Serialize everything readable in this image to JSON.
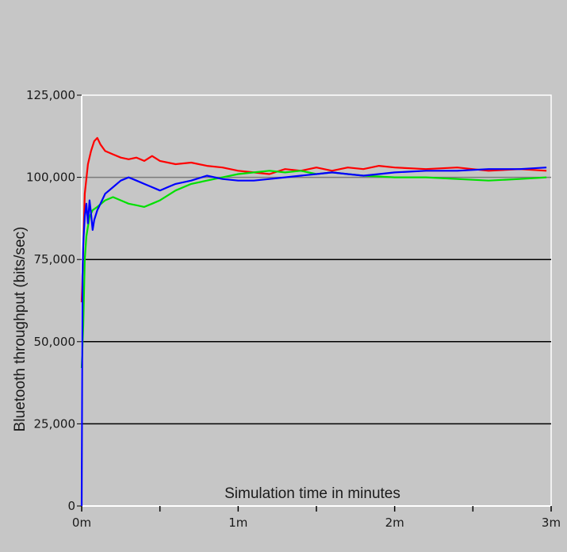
{
  "chart_data": {
    "type": "line",
    "title": "",
    "xlabel": "Simulation time in minutes",
    "ylabel": "Bluetooth throughput (bits/sec)",
    "xlim": [
      0,
      3
    ],
    "ylim": [
      0,
      125000
    ],
    "x_ticks": [
      {
        "value": 0,
        "label": "0m"
      },
      {
        "value": 1,
        "label": "1m"
      },
      {
        "value": 2,
        "label": "2m"
      },
      {
        "value": 3,
        "label": "3m"
      }
    ],
    "y_ticks": [
      {
        "value": 0,
        "label": "0"
      },
      {
        "value": 25000,
        "label": "25,000"
      },
      {
        "value": 50000,
        "label": "50,000"
      },
      {
        "value": 75000,
        "label": "75,000"
      },
      {
        "value": 100000,
        "label": "100,000"
      },
      {
        "value": 125000,
        "label": "125,000"
      }
    ],
    "gridlines_y": [
      25000,
      50000,
      75000,
      100000
    ],
    "grid": true,
    "series": [
      {
        "color": "#ff0000",
        "x": [
          0,
          0.02,
          0.04,
          0.06,
          0.08,
          0.1,
          0.12,
          0.15,
          0.2,
          0.25,
          0.3,
          0.35,
          0.4,
          0.45,
          0.5,
          0.6,
          0.7,
          0.8,
          0.9,
          1.0,
          1.1,
          1.2,
          1.3,
          1.4,
          1.5,
          1.6,
          1.7,
          1.8,
          1.9,
          2.0,
          2.2,
          2.4,
          2.6,
          2.8,
          2.97
        ],
        "y": [
          62000,
          95000,
          104000,
          108000,
          111000,
          112000,
          110000,
          108000,
          107000,
          106000,
          105500,
          106000,
          105000,
          106500,
          105000,
          104000,
          104500,
          103500,
          103000,
          102000,
          101500,
          101000,
          102500,
          102000,
          103000,
          102000,
          103000,
          102500,
          103500,
          103000,
          102500,
          103000,
          102000,
          102500,
          102000
        ]
      },
      {
        "color": "#00e000",
        "x": [
          0,
          0.01,
          0.02,
          0.03,
          0.05,
          0.07,
          0.1,
          0.15,
          0.2,
          0.25,
          0.3,
          0.35,
          0.4,
          0.45,
          0.5,
          0.55,
          0.6,
          0.7,
          0.8,
          0.9,
          1.0,
          1.1,
          1.2,
          1.3,
          1.4,
          1.5,
          1.6,
          1.7,
          1.8,
          2.0,
          2.2,
          2.4,
          2.6,
          2.8,
          2.97
        ],
        "y": [
          42000,
          55000,
          75000,
          82000,
          88000,
          90000,
          91000,
          93000,
          94000,
          93000,
          92000,
          91500,
          91000,
          92000,
          93000,
          94500,
          96000,
          98000,
          99000,
          100000,
          101000,
          101500,
          102000,
          101500,
          102000,
          101000,
          101500,
          101000,
          100500,
          100000,
          100000,
          99500,
          99000,
          99500,
          100000
        ]
      },
      {
        "color": "#0000ff",
        "x": [
          0,
          0.005,
          0.01,
          0.02,
          0.03,
          0.04,
          0.05,
          0.06,
          0.07,
          0.08,
          0.1,
          0.12,
          0.15,
          0.2,
          0.25,
          0.3,
          0.35,
          0.4,
          0.45,
          0.5,
          0.55,
          0.6,
          0.7,
          0.8,
          0.9,
          1.0,
          1.1,
          1.2,
          1.3,
          1.4,
          1.5,
          1.6,
          1.7,
          1.8,
          1.9,
          2.0,
          2.2,
          2.4,
          2.6,
          2.8,
          2.97
        ],
        "y": [
          0,
          70000,
          80000,
          88000,
          92000,
          86000,
          93000,
          89000,
          84000,
          87000,
          90000,
          92000,
          95000,
          97000,
          99000,
          100000,
          99000,
          98000,
          97000,
          96000,
          97000,
          98000,
          99000,
          100500,
          99500,
          99000,
          99000,
          99500,
          100000,
          100500,
          101000,
          101500,
          101000,
          100500,
          101000,
          101500,
          102000,
          102000,
          102500,
          102500,
          103000
        ]
      }
    ]
  }
}
